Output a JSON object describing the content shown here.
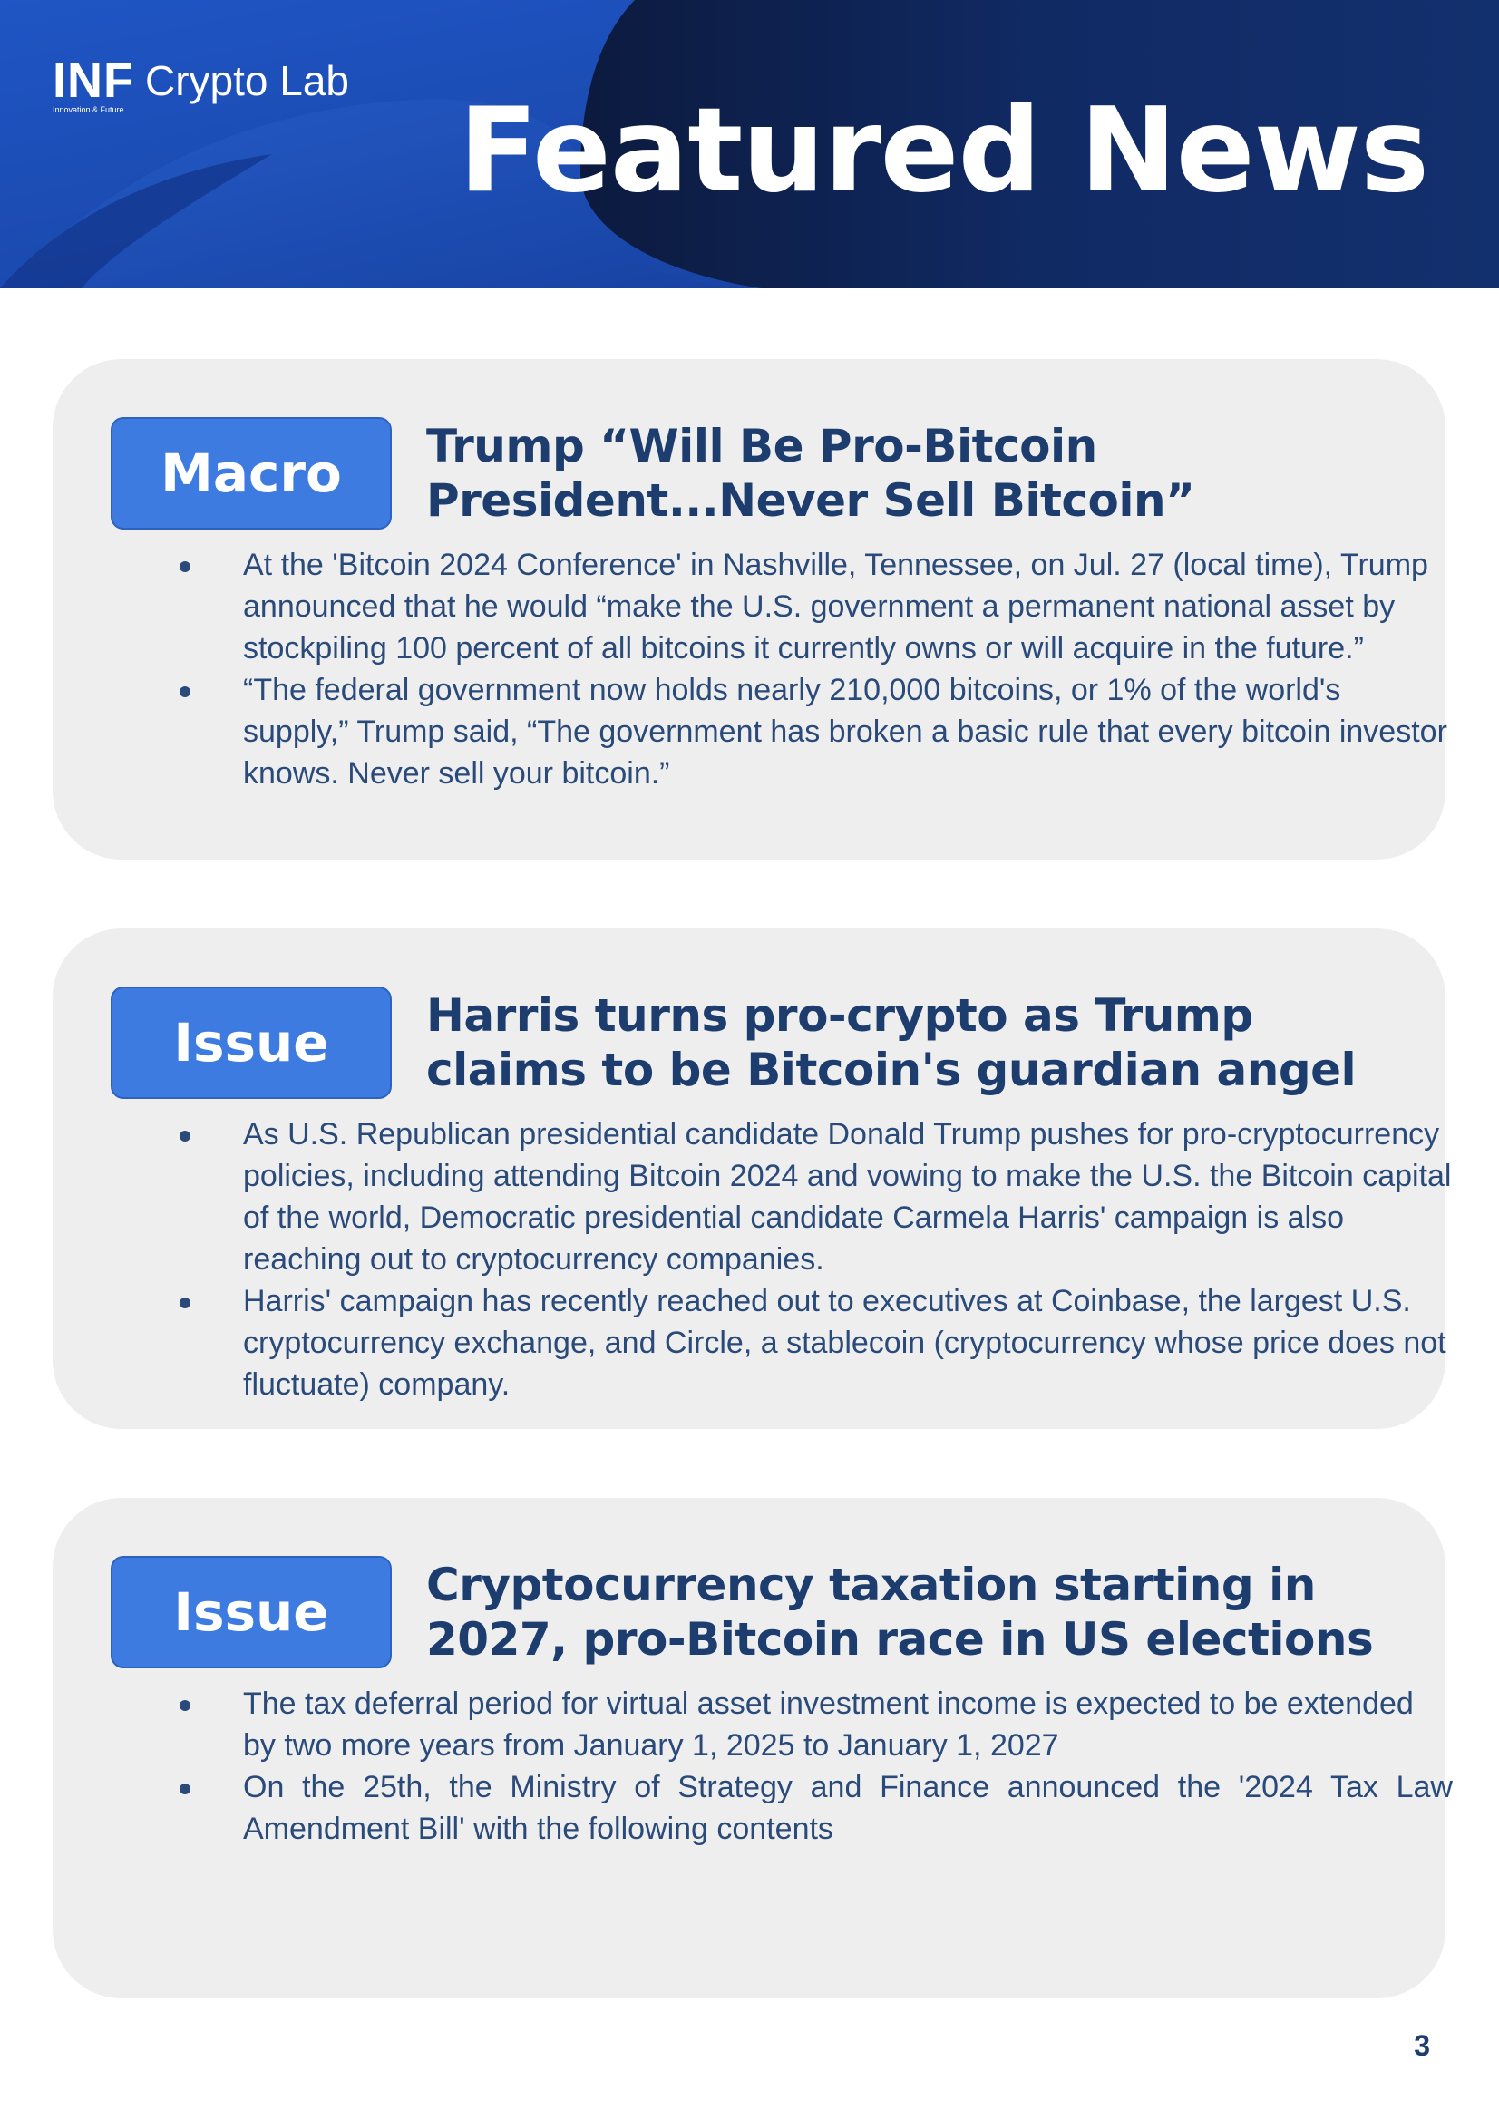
{
  "header": {
    "logo_mark": "INF",
    "logo_tagline": "Innovation & Future",
    "logo_brand": "Crypto Lab",
    "title": "Featured News",
    "colors": {
      "banner_light": "#1a4db5",
      "banner_dark": "#0f2352"
    }
  },
  "cards": [
    {
      "badge": "Macro",
      "headline": "Trump “Will Be Pro-Bitcoin President...Never Sell Bitcoin”",
      "bullets": [
        "At the 'Bitcoin 2024 Conference' in Nashville, Tennessee, on Jul. 27 (local time), Trump announced that he would “make the U.S. government a permanent national asset by stockpiling 100 percent of all bitcoins it currently owns or will acquire in the future.”",
        "“The federal government now holds nearly 210,000 bitcoins, or 1% of the world's supply,” Trump said, “The government has broken a basic rule that every bitcoin investor knows. Never sell your bitcoin.”"
      ]
    },
    {
      "badge": "Issue",
      "headline": "Harris turns pro-crypto as Trump claims to be Bitcoin's guardian angel",
      "bullets": [
        "As U.S. Republican presidential candidate Donald Trump pushes for pro-cryptocurrency policies, including attending Bitcoin 2024 and vowing to make the U.S. the Bitcoin capital of the world, Democratic presidential candidate Carmela Harris' campaign is also reaching out to cryptocurrency companies.",
        "Harris' campaign has recently reached out to executives at Coinbase, the largest U.S. cryptocurrency exchange, and Circle, a stablecoin (cryptocurrency whose price does not fluctuate) company."
      ]
    },
    {
      "badge": "Issue",
      "headline": "Cryptocurrency taxation starting in 2027, pro-Bitcoin race in US elections",
      "bullets": [
        "The tax deferral period for virtual asset investment income is expected to be extended by two more years from January 1, 2025 to January 1, 2027",
        "On the 25th, the Ministry of Strategy and Finance announced the '2024 Tax Law Amendment Bill' with the following contents"
      ]
    }
  ],
  "colors": {
    "card_bg": "#eeeeee",
    "badge_bg": "#3d7be0",
    "headline_text": "#1d3d6e",
    "body_text": "#2a4a7a"
  },
  "page_number": "3"
}
